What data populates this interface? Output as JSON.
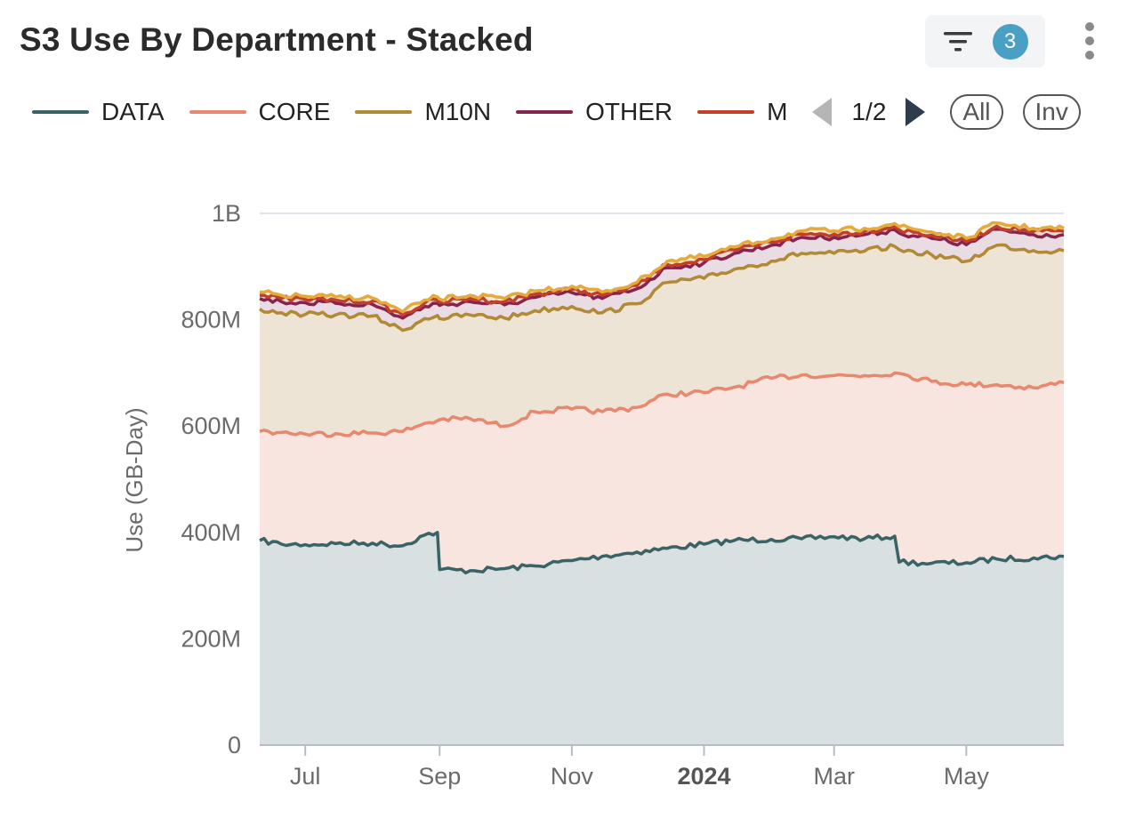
{
  "header": {
    "title": "S3 Use By Department - Stacked",
    "filter_count": "3",
    "filter_icon": "filter-icon",
    "more_icon": "more-vertical-icon"
  },
  "legend": {
    "items": [
      {
        "label": "DATA",
        "color": "#3a6366"
      },
      {
        "label": "CORE",
        "color": "#e8886f"
      },
      {
        "label": "M10N",
        "color": "#b08a34"
      },
      {
        "label": "OTHER",
        "color": "#85244e"
      },
      {
        "label": "M",
        "color": "#c0402a"
      }
    ],
    "page": "1/2",
    "all_label": "All",
    "inv_label": "Inv"
  },
  "chart_data": {
    "type": "area",
    "stacked": true,
    "ylabel": "Use (GB-Day)",
    "ylim": [
      0,
      1000000000
    ],
    "yticks": [
      {
        "value": 0,
        "label": "0"
      },
      {
        "value": 200000000,
        "label": "200M"
      },
      {
        "value": 400000000,
        "label": "400M"
      },
      {
        "value": 600000000,
        "label": "600M"
      },
      {
        "value": 800000000,
        "label": "800M"
      },
      {
        "value": 1000000000,
        "label": "1B"
      }
    ],
    "xlim": [
      "2023-06-10",
      "2024-06-15"
    ],
    "xticks": [
      {
        "date": "2023-07-01",
        "label": "Jul",
        "bold": false
      },
      {
        "date": "2023-09-01",
        "label": "Sep",
        "bold": false
      },
      {
        "date": "2023-11-01",
        "label": "Nov",
        "bold": false
      },
      {
        "date": "2024-01-01",
        "label": "2024",
        "bold": true
      },
      {
        "date": "2024-03-01",
        "label": "Mar",
        "bold": false
      },
      {
        "date": "2024-05-01",
        "label": "May",
        "bold": false
      }
    ],
    "grid": true,
    "legend_position": "top",
    "x": [
      "2023-06-10",
      "2023-06-20",
      "2023-07-01",
      "2023-07-15",
      "2023-08-01",
      "2023-08-15",
      "2023-08-25",
      "2023-08-31",
      "2023-09-01",
      "2023-09-15",
      "2023-10-01",
      "2023-10-15",
      "2023-11-01",
      "2023-11-15",
      "2023-12-01",
      "2023-12-15",
      "2024-01-01",
      "2024-01-15",
      "2024-02-01",
      "2024-02-15",
      "2024-03-01",
      "2024-03-15",
      "2024-03-29",
      "2024-03-31",
      "2024-04-15",
      "2024-05-01",
      "2024-05-15",
      "2024-06-01",
      "2024-06-15"
    ],
    "series": [
      {
        "name": "DATA",
        "color": "#3a6366",
        "fill": "#d8e0e1",
        "values": [
          385000000,
          378000000,
          377000000,
          379000000,
          380000000,
          375000000,
          395000000,
          400000000,
          330000000,
          328000000,
          332000000,
          337000000,
          347000000,
          355000000,
          363000000,
          370000000,
          378000000,
          385000000,
          387000000,
          388000000,
          392000000,
          388000000,
          393000000,
          344000000,
          342000000,
          343000000,
          350000000,
          352000000,
          355000000
        ]
      },
      {
        "name": "CORE",
        "color": "#e8886f",
        "fill": "#f8e5df",
        "values": [
          205000000,
          210000000,
          208000000,
          207000000,
          207000000,
          215000000,
          210000000,
          210000000,
          282000000,
          286000000,
          268000000,
          290000000,
          285000000,
          272000000,
          272000000,
          290000000,
          285000000,
          288000000,
          303000000,
          308000000,
          303000000,
          307000000,
          307000000,
          355000000,
          342000000,
          335000000,
          328000000,
          320000000,
          327000000
        ]
      },
      {
        "name": "M10N",
        "color": "#b08a34",
        "fill": "#ede4d6",
        "values": [
          230000000,
          225000000,
          225000000,
          223000000,
          220000000,
          190000000,
          197000000,
          198000000,
          190000000,
          195000000,
          203000000,
          190000000,
          193000000,
          186000000,
          195000000,
          210000000,
          215000000,
          222000000,
          220000000,
          229000000,
          230000000,
          234000000,
          238000000,
          233000000,
          238000000,
          232000000,
          262000000,
          258000000,
          248000000
        ]
      },
      {
        "name": "OTHER",
        "color": "#85244e",
        "fill": "#eadce3",
        "values": [
          20000000,
          21000000,
          22000000,
          22000000,
          22000000,
          23000000,
          23000000,
          23000000,
          25000000,
          25000000,
          25000000,
          25000000,
          26000000,
          27000000,
          28000000,
          28000000,
          29000000,
          30000000,
          30000000,
          30000000,
          30000000,
          31000000,
          31000000,
          31000000,
          31000000,
          31000000,
          30000000,
          30000000,
          30000000
        ]
      },
      {
        "name": "M",
        "color": "#c0402a",
        "fill": "#f2d8d2",
        "values": [
          6000000,
          6000000,
          6000000,
          6000000,
          6000000,
          6000000,
          6000000,
          6000000,
          6000000,
          6000000,
          6000000,
          6000000,
          6000000,
          6000000,
          6000000,
          6000000,
          6000000,
          6000000,
          6000000,
          6000000,
          6000000,
          6000000,
          6000000,
          6000000,
          6000000,
          6000000,
          6000000,
          6000000,
          6000000
        ]
      },
      {
        "name": "",
        "color": "#e5a93c",
        "fill": "#f6ead0",
        "values": [
          6000000,
          6000000,
          6000000,
          6000000,
          6000000,
          6000000,
          6000000,
          6000000,
          6000000,
          6000000,
          6000000,
          6000000,
          6000000,
          6000000,
          6000000,
          6000000,
          6000000,
          6000000,
          6000000,
          6000000,
          6000000,
          6000000,
          6000000,
          6000000,
          6000000,
          6000000,
          6000000,
          6000000,
          6000000
        ]
      }
    ]
  }
}
